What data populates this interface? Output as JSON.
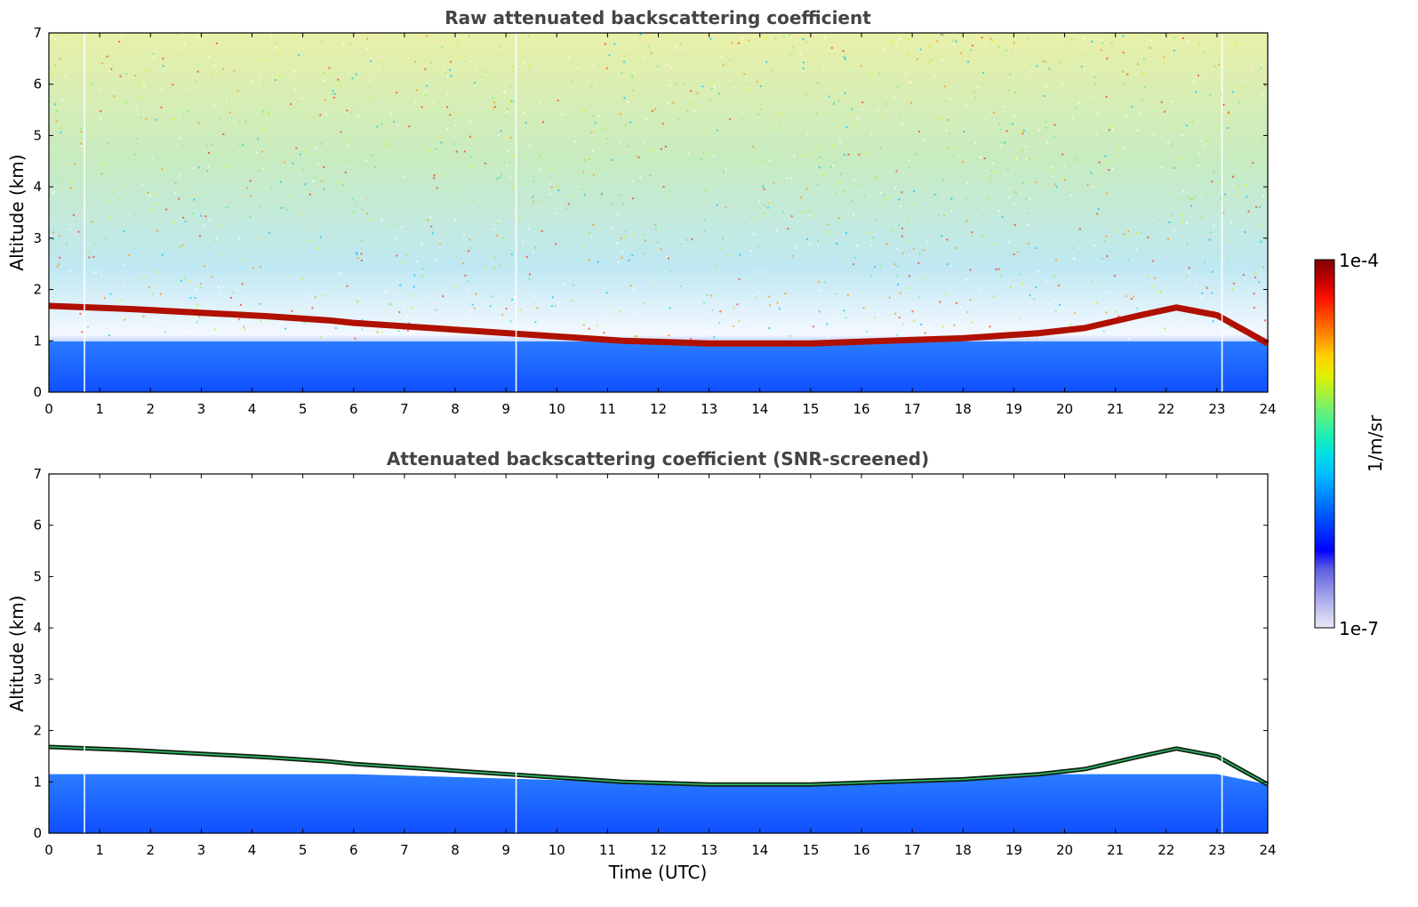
{
  "chart_data": [
    {
      "type": "heatmap",
      "title": "Raw attenuated backscattering coefficient",
      "xlabel": "",
      "ylabel": "Altitude (km)",
      "xlim": [
        0,
        24
      ],
      "ylim": [
        0,
        7
      ],
      "xticks": [
        0,
        1,
        2,
        3,
        4,
        5,
        6,
        7,
        8,
        9,
        10,
        11,
        12,
        13,
        14,
        15,
        16,
        17,
        18,
        19,
        20,
        21,
        22,
        23,
        24
      ],
      "yticks": [
        0,
        1,
        2,
        3,
        4,
        5,
        6,
        7
      ],
      "cloud_layer_km": [
        [
          0.0,
          1.68
        ],
        [
          1.6,
          1.62
        ],
        [
          4.3,
          1.48
        ],
        [
          5.5,
          1.4
        ],
        [
          6.0,
          1.35
        ],
        [
          11.3,
          1.0
        ],
        [
          13.0,
          0.95
        ],
        [
          15.0,
          0.95
        ],
        [
          16.5,
          1.0
        ],
        [
          18.0,
          1.05
        ],
        [
          19.5,
          1.15
        ],
        [
          20.4,
          1.25
        ],
        [
          21.5,
          1.5
        ],
        [
          22.2,
          1.65
        ],
        [
          23.0,
          1.5
        ],
        [
          24.0,
          0.95
        ]
      ],
      "data_gaps_utc": [
        0.7,
        9.2,
        23.1
      ],
      "description_of_field": "noisy background increasing with altitude; strong signal below 1 km"
    },
    {
      "type": "heatmap",
      "title": "Attenuated backscattering coefficient (SNR-screened)",
      "xlabel": "Time (UTC)",
      "ylabel": "Altitude (km)",
      "xlim": [
        0,
        24
      ],
      "ylim": [
        0,
        7
      ],
      "xticks": [
        0,
        1,
        2,
        3,
        4,
        5,
        6,
        7,
        8,
        9,
        10,
        11,
        12,
        13,
        14,
        15,
        16,
        17,
        18,
        19,
        20,
        21,
        22,
        23,
        24
      ],
      "yticks": [
        0,
        1,
        2,
        3,
        4,
        5,
        6,
        7
      ],
      "cloud_layer_km": [
        [
          0.0,
          1.68
        ],
        [
          1.6,
          1.62
        ],
        [
          4.3,
          1.48
        ],
        [
          5.5,
          1.4
        ],
        [
          6.0,
          1.35
        ],
        [
          11.3,
          1.0
        ],
        [
          13.0,
          0.95
        ],
        [
          15.0,
          0.95
        ],
        [
          16.5,
          1.0
        ],
        [
          18.0,
          1.05
        ],
        [
          19.5,
          1.15
        ],
        [
          20.4,
          1.25
        ],
        [
          21.5,
          1.5
        ],
        [
          22.2,
          1.65
        ],
        [
          23.0,
          1.5
        ],
        [
          24.0,
          0.95
        ]
      ],
      "data_gaps_utc": [
        0.7,
        9.2,
        23.1
      ]
    }
  ],
  "colorbar": {
    "max_label": "1e-4",
    "min_label": "1e-7",
    "unit_label": "1/m/sr",
    "colors": [
      "#e8e8f8",
      "#c0c0f0",
      "#9090e8",
      "#6060e0",
      "#0000ff",
      "#0030ff",
      "#0060ff",
      "#0090ff",
      "#00c0ff",
      "#00e0e0",
      "#20f0b0",
      "#60f080",
      "#a0f040",
      "#e0f000",
      "#ffd000",
      "#ff9000",
      "#ff5000",
      "#ff1000",
      "#c00000",
      "#800000"
    ]
  }
}
